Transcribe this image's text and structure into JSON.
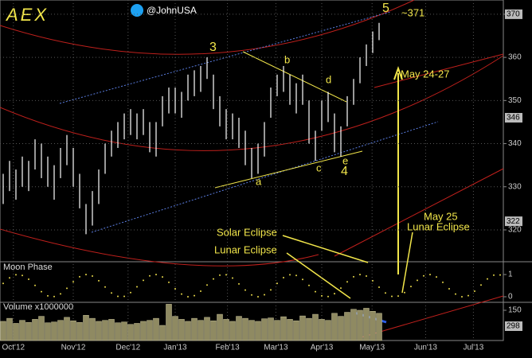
{
  "chart_data": [
    {
      "type": "range-bar",
      "title": "AEX",
      "handle": "@JohnUSA",
      "high": [
        333,
        336,
        334,
        337,
        336,
        341,
        340,
        337,
        335,
        339,
        342,
        339,
        333,
        326,
        329,
        334,
        340,
        343,
        345,
        347,
        348,
        347,
        348,
        345,
        345,
        351,
        353,
        353,
        352,
        356,
        357,
        358,
        360,
        356,
        351,
        348,
        347,
        346,
        343,
        339,
        340,
        345,
        353,
        356,
        358,
        356,
        354,
        356,
        350,
        343,
        350,
        352,
        347,
        344,
        351,
        355,
        360,
        363,
        366,
        368
      ],
      "low": [
        326,
        329,
        327,
        330,
        329,
        334,
        332,
        330,
        327,
        332,
        335,
        330,
        325,
        319,
        321,
        326,
        333,
        337,
        339,
        341,
        342,
        341,
        342,
        338,
        337,
        344,
        347,
        347,
        346,
        350,
        351,
        352,
        355,
        348,
        344,
        341,
        341,
        339,
        335,
        332,
        333,
        337,
        346,
        351,
        352,
        349,
        347,
        349,
        340,
        336,
        343,
        345,
        338,
        337,
        344,
        349,
        354,
        358,
        361,
        364
      ],
      "color": "#ffffff",
      "xlim": [
        -0.5,
        78.5
      ],
      "xticks": [
        {
          "value": 1.6,
          "label": "Oct'12"
        },
        {
          "value": 11,
          "label": "Nov'12"
        },
        {
          "value": 19.6,
          "label": "Dec'12"
        },
        {
          "value": 27,
          "label": "Jan'13"
        },
        {
          "value": 35.2,
          "label": "Feb'13"
        },
        {
          "value": 42.8,
          "label": "Mar'13"
        },
        {
          "value": 50,
          "label": "Apr'13"
        },
        {
          "value": 57.9,
          "label": "May'13"
        },
        {
          "value": 66.3,
          "label": "Jun'13"
        },
        {
          "value": 73.8,
          "label": "Jul'13"
        }
      ],
      "ylim": [
        312.8,
        373.3
      ],
      "yticks": [
        320,
        330,
        340,
        350,
        360,
        370
      ],
      "marker_labels": [
        370,
        346,
        322
      ],
      "grid": true,
      "annotations": [
        "5",
        "~371",
        "3",
        "b",
        "d",
        "a",
        "c",
        "e",
        "4",
        "May 24-27",
        "May 25",
        "Lunar Eclipse",
        "Solar Eclipse",
        "Lunar Eclipse"
      ]
    },
    {
      "type": "dot-line",
      "title": "Moon Phase",
      "color": "#e8d84a",
      "values": [
        0.6,
        0.85,
        0.99,
        0.96,
        0.79,
        0.51,
        0.23,
        0.04,
        0.01,
        0.13,
        0.38,
        0.67,
        0.9,
        1,
        0.93,
        0.72,
        0.44,
        0.17,
        0.02,
        0.02,
        0.19,
        0.45,
        0.74,
        0.94,
        1,
        0.89,
        0.65,
        0.36,
        0.12,
        0,
        0.05,
        0.25,
        0.53,
        0.8,
        0.97,
        0.99,
        0.84,
        0.58,
        0.3,
        0.08,
        0,
        0.09,
        0.31,
        0.6,
        0.86,
        0.99,
        0.96,
        0.78,
        0.51,
        0.23,
        0.04,
        0.01,
        0.14,
        0.39,
        0.67,
        0.9,
        1,
        0.93,
        0.72,
        0.43,
        0.17,
        0.02,
        0.03,
        0.19,
        0.46,
        0.74,
        0.94,
        1,
        0.89,
        0.65,
        0.36,
        0.12,
        0,
        0.05,
        0.25,
        0.53,
        0.8,
        0.97,
        0.98
      ],
      "ylim": [
        -0.25,
        1.54
      ],
      "yticks": [
        0,
        1
      ]
    },
    {
      "type": "bar",
      "title": "Volume x1000000",
      "color": "#8f8a62",
      "values": [
        95,
        110,
        85,
        100,
        90,
        105,
        120,
        88,
        92,
        100,
        115,
        98,
        90,
        125,
        110,
        95,
        100,
        105,
        88,
        92,
        80,
        85,
        95,
        100,
        110,
        75,
        180,
        120,
        105,
        95,
        110,
        100,
        115,
        98,
        130,
        105,
        95,
        120,
        110,
        100,
        95,
        108,
        112,
        100,
        118,
        105,
        98,
        122,
        110,
        130,
        105,
        100,
        135,
        120,
        140,
        155,
        150,
        160,
        145,
        135
      ],
      "ylim": [
        0,
        185.5
      ],
      "yticks": [
        150
      ],
      "last_label": "298"
    }
  ]
}
